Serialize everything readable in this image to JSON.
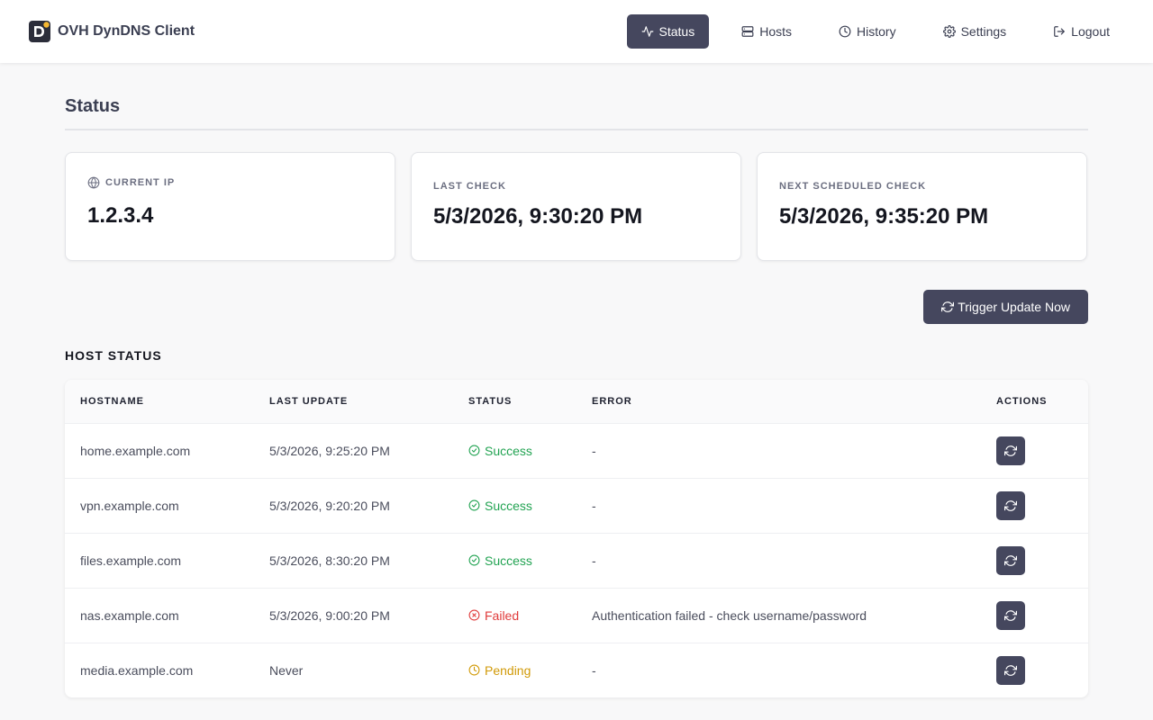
{
  "app": {
    "title": "OVH DynDNS Client",
    "logo_icon": "dyndns-logo-icon"
  },
  "nav": {
    "items": [
      {
        "label": "Status",
        "icon": "activity-icon",
        "active": true
      },
      {
        "label": "Hosts",
        "icon": "server-icon",
        "active": false
      },
      {
        "label": "History",
        "icon": "clock-icon",
        "active": false
      },
      {
        "label": "Settings",
        "icon": "gear-icon",
        "active": false
      },
      {
        "label": "Logout",
        "icon": "logout-icon",
        "active": false
      }
    ]
  },
  "page": {
    "title": "Status"
  },
  "cards": {
    "current_ip": {
      "label": "Current IP",
      "value": "1.2.3.4",
      "icon": "globe-icon"
    },
    "last_check": {
      "label": "Last Check",
      "value": "5/3/2026, 9:30:20 PM"
    },
    "next_check": {
      "label": "Next Scheduled Check",
      "value": "5/3/2026, 9:35:20 PM"
    }
  },
  "trigger_button": {
    "label": "Trigger Update Now",
    "icon": "refresh-icon"
  },
  "host_status": {
    "title": "Host Status",
    "columns": [
      "Hostname",
      "Last Update",
      "Status",
      "Error",
      "Actions"
    ],
    "rows": [
      {
        "hostname": "home.example.com",
        "last_update": "5/3/2026, 9:25:20 PM",
        "status": "Success",
        "error": "-"
      },
      {
        "hostname": "vpn.example.com",
        "last_update": "5/3/2026, 9:20:20 PM",
        "status": "Success",
        "error": "-"
      },
      {
        "hostname": "files.example.com",
        "last_update": "5/3/2026, 8:30:20 PM",
        "status": "Success",
        "error": "-"
      },
      {
        "hostname": "nas.example.com",
        "last_update": "5/3/2026, 9:00:20 PM",
        "status": "Failed",
        "error": "Authentication failed - check username/password"
      },
      {
        "hostname": "media.example.com",
        "last_update": "Never",
        "status": "Pending",
        "error": "-"
      }
    ]
  },
  "colors": {
    "primary": "#45475e",
    "success": "#22a352",
    "failed": "#e03b3b",
    "pending": "#d19a08",
    "logo_accent": "#f5b731"
  }
}
